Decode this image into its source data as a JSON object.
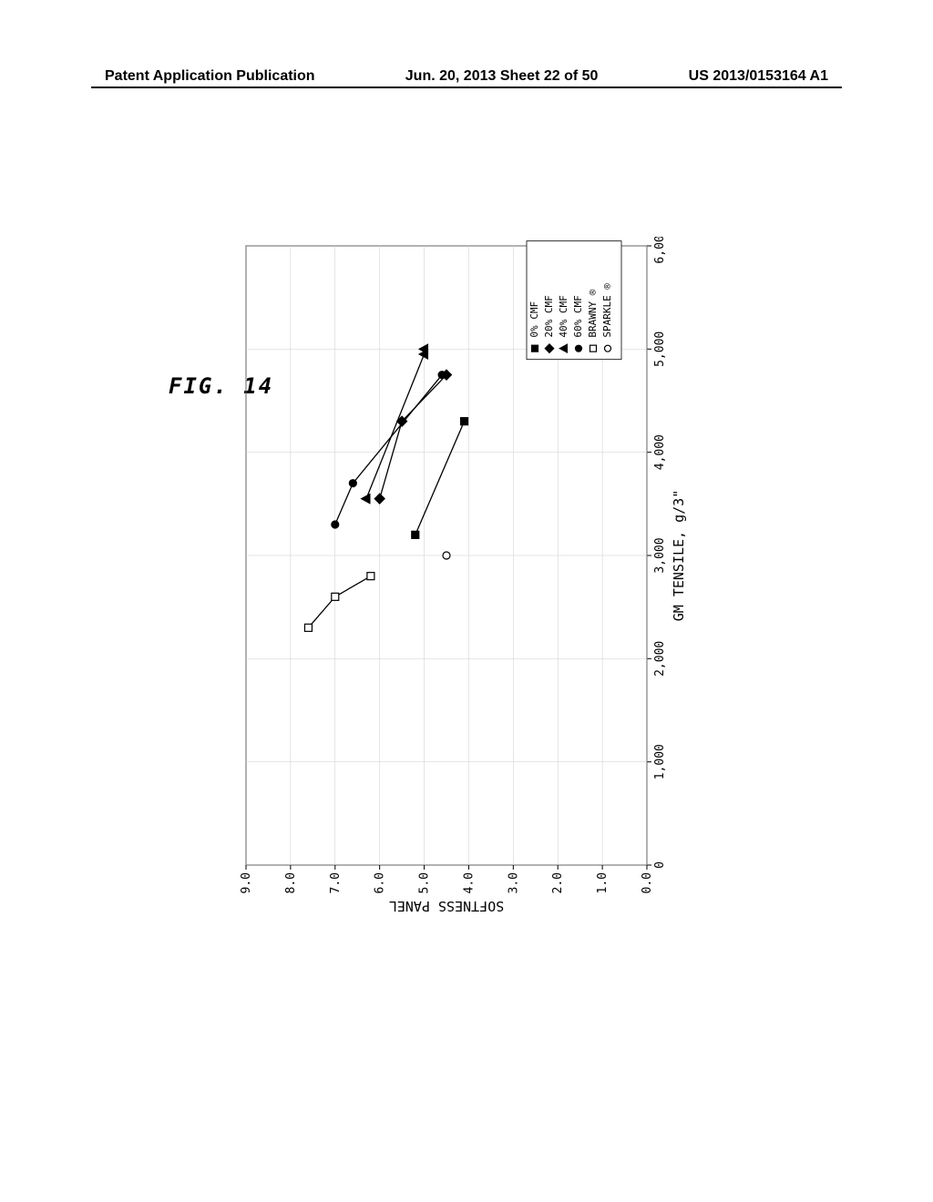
{
  "header": {
    "left": "Patent Application Publication",
    "center": "Jun. 20, 2013  Sheet 22 of 50",
    "right": "US 2013/0153164 A1"
  },
  "figure_label": "FIG. 14",
  "chart": {
    "type": "scatter",
    "x_axis": {
      "label": "GM TENSILE, g/3\"",
      "min": 0,
      "max": 6000,
      "tick_step": 1000,
      "ticks": [
        "0",
        "1,000",
        "2,000",
        "3,000",
        "4,000",
        "5,000",
        "6,000"
      ]
    },
    "y_axis": {
      "label": "SOFTNESS PANEL",
      "min": 0,
      "max": 9,
      "tick_step": 1,
      "ticks": [
        "0.0",
        "1.0",
        "2.0",
        "3.0",
        "4.0",
        "5.0",
        "6.0",
        "7.0",
        "8.0",
        "9.0"
      ]
    },
    "grid_color": "#cccccc",
    "axis_color": "#000000",
    "background_color": "#ffffff",
    "series": [
      {
        "name": "0% CMF",
        "marker": "filled-square",
        "color": "#000000",
        "points": [
          [
            3200,
            5.2
          ],
          [
            4300,
            4.1
          ]
        ],
        "line": true
      },
      {
        "name": "20% CMF",
        "marker": "filled-diamond",
        "color": "#000000",
        "points": [
          [
            3550,
            6.0
          ],
          [
            4300,
            5.5
          ],
          [
            4750,
            4.5
          ]
        ],
        "line": true
      },
      {
        "name": "40% CMF",
        "marker": "filled-triangle",
        "color": "#000000",
        "points": [
          [
            3550,
            6.3
          ],
          [
            4950,
            5.0
          ],
          [
            5000,
            5.0
          ]
        ],
        "line": true
      },
      {
        "name": "60% CMF",
        "marker": "filled-circle",
        "color": "#000000",
        "points": [
          [
            3300,
            7.0
          ],
          [
            3700,
            6.6
          ],
          [
            4750,
            4.6
          ]
        ],
        "line": true
      },
      {
        "name": "BRAWNY ®",
        "marker": "open-square",
        "color": "#000000",
        "points": [
          [
            2300,
            7.6
          ],
          [
            2600,
            7.0
          ],
          [
            2800,
            6.2
          ]
        ],
        "line": true
      },
      {
        "name": "SPARKLE ®",
        "marker": "open-circle",
        "color": "#000000",
        "points": [
          [
            3000,
            4.5
          ]
        ],
        "line": false
      }
    ],
    "legend": {
      "position": "lower-right",
      "items": [
        {
          "marker": "filled-square",
          "label": "0% CMF"
        },
        {
          "marker": "filled-diamond",
          "label": "20% CMF"
        },
        {
          "marker": "filled-triangle",
          "label": "40% CMF"
        },
        {
          "marker": "filled-circle",
          "label": "60% CMF"
        },
        {
          "marker": "open-square",
          "label": "BRAWNY ®"
        },
        {
          "marker": "open-circle",
          "label": "SPARKLE ®"
        }
      ]
    }
  }
}
